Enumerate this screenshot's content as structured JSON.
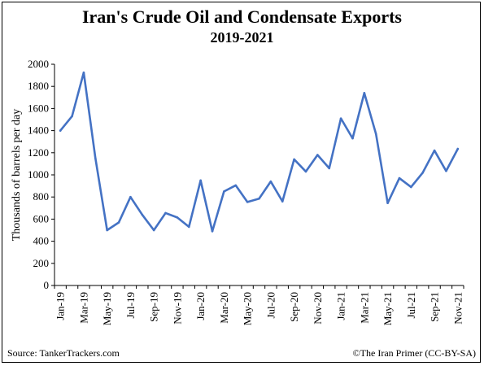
{
  "chart_data": {
    "type": "line",
    "title": "Iran's Crude Oil and Condensate Exports",
    "subtitle": "2019-2021",
    "xlabel": "",
    "ylabel": "Thousands of barrels per day",
    "ylim": [
      0,
      2000
    ],
    "yticks": [
      "0",
      "200",
      "400",
      "600",
      "800",
      "1000",
      "1200",
      "1400",
      "1600",
      "1800",
      "2000"
    ],
    "grid": false,
    "x": [
      "Jan-19",
      "Feb-19",
      "Mar-19",
      "Apr-19",
      "May-19",
      "Jun-19",
      "Jul-19",
      "Aug-19",
      "Sep-19",
      "Oct-19",
      "Nov-19",
      "Dec-19",
      "Jan-20",
      "Feb-20",
      "Mar-20",
      "Apr-20",
      "May-20",
      "Jun-20",
      "Jul-20",
      "Aug-20",
      "Sep-20",
      "Oct-20",
      "Nov-20",
      "Dec-20",
      "Jan-21",
      "Feb-21",
      "Mar-21",
      "Apr-21",
      "May-21",
      "Jun-21",
      "Jul-21",
      "Aug-21",
      "Sep-21",
      "Oct-21",
      "Nov-21"
    ],
    "xtick_labels": [
      "Jan-19",
      "Mar-19",
      "May-19",
      "Jul-19",
      "Sep-19",
      "Nov-19",
      "Jan-20",
      "Mar-20",
      "May-20",
      "Jul-20",
      "Sep-20",
      "Nov-20",
      "Jan-21",
      "Mar-21",
      "May-21",
      "Jul-21",
      "Sep-21",
      "Nov-21"
    ],
    "series": [
      {
        "name": "",
        "color": "#4472C4",
        "values": [
          1400,
          1530,
          1925,
          1150,
          500,
          570,
          800,
          640,
          500,
          655,
          615,
          530,
          950,
          490,
          850,
          905,
          755,
          785,
          940,
          760,
          1140,
          1030,
          1180,
          1060,
          1510,
          1330,
          1740,
          1370,
          745,
          970,
          890,
          1020,
          1220,
          1035,
          1235
        ]
      }
    ]
  },
  "footer": {
    "source": "Source:  TankerTrackers.com",
    "credit": "©The Iran Primer  (CC-BY-SA)"
  }
}
